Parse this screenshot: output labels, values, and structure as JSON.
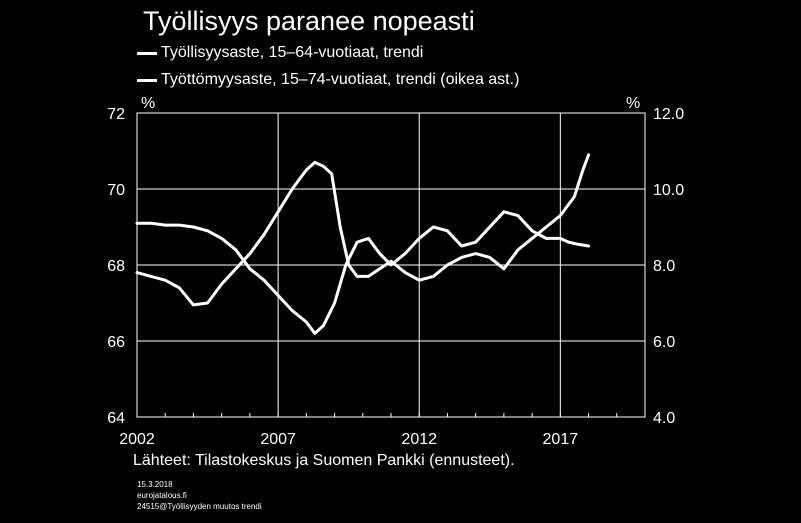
{
  "chart_data": {
    "type": "line",
    "title": "Työllisyys paranee nopeasti",
    "left_axis": {
      "unit": "%",
      "ylim": [
        64,
        72
      ],
      "ticks": [
        "64",
        "66",
        "68",
        "70",
        "72"
      ]
    },
    "right_axis": {
      "unit": "%",
      "ylim": [
        4.0,
        12.0
      ],
      "ticks": [
        "4.0",
        "6.0",
        "8.0",
        "10.0",
        "12.0"
      ]
    },
    "x_axis": {
      "range": [
        2002.0,
        2020.0
      ],
      "tick_labels": [
        "2002",
        "2007",
        "2012",
        "2017"
      ],
      "gridlines": [
        2007,
        2012,
        2017
      ]
    },
    "grid": true,
    "legend_position": "top-left",
    "series": [
      {
        "name": "Työllisyysaste, 15–64-vuotiaat, trendi",
        "axis": "left",
        "color": "#ffffff",
        "points": [
          [
            2002.0,
            67.8
          ],
          [
            2002.5,
            67.7
          ],
          [
            2003.0,
            67.6
          ],
          [
            2003.5,
            67.4
          ],
          [
            2004.0,
            66.95
          ],
          [
            2004.5,
            67.0
          ],
          [
            2005.0,
            67.5
          ],
          [
            2005.5,
            67.9
          ],
          [
            2006.0,
            68.3
          ],
          [
            2006.5,
            68.8
          ],
          [
            2007.0,
            69.4
          ],
          [
            2007.5,
            70.0
          ],
          [
            2008.0,
            70.5
          ],
          [
            2008.3,
            70.7
          ],
          [
            2008.6,
            70.6
          ],
          [
            2008.9,
            70.4
          ],
          [
            2009.2,
            69.0
          ],
          [
            2009.5,
            68.0
          ],
          [
            2009.8,
            67.7
          ],
          [
            2010.2,
            67.7
          ],
          [
            2010.6,
            67.9
          ],
          [
            2011.0,
            68.1
          ],
          [
            2011.5,
            67.8
          ],
          [
            2012.0,
            67.6
          ],
          [
            2012.5,
            67.7
          ],
          [
            2013.0,
            68.0
          ],
          [
            2013.5,
            68.2
          ],
          [
            2014.0,
            68.3
          ],
          [
            2014.5,
            68.2
          ],
          [
            2015.0,
            67.9
          ],
          [
            2015.5,
            68.4
          ],
          [
            2016.0,
            68.7
          ],
          [
            2016.5,
            69.0
          ],
          [
            2017.0,
            69.3
          ],
          [
            2017.5,
            69.8
          ],
          [
            2017.8,
            70.5
          ],
          [
            2018.0,
            70.9
          ]
        ]
      },
      {
        "name": "Työttömyysaste, 15–74-vuotiaat, trendi (oikea ast.)",
        "axis": "right",
        "color": "#ffffff",
        "points": [
          [
            2002.0,
            9.1
          ],
          [
            2002.5,
            9.1
          ],
          [
            2003.0,
            9.05
          ],
          [
            2003.5,
            9.05
          ],
          [
            2004.0,
            9.0
          ],
          [
            2004.5,
            8.9
          ],
          [
            2005.0,
            8.7
          ],
          [
            2005.5,
            8.4
          ],
          [
            2006.0,
            7.9
          ],
          [
            2006.5,
            7.6
          ],
          [
            2007.0,
            7.2
          ],
          [
            2007.5,
            6.8
          ],
          [
            2008.0,
            6.5
          ],
          [
            2008.3,
            6.2
          ],
          [
            2008.6,
            6.4
          ],
          [
            2009.0,
            7.0
          ],
          [
            2009.4,
            8.0
          ],
          [
            2009.8,
            8.6
          ],
          [
            2010.2,
            8.7
          ],
          [
            2010.6,
            8.3
          ],
          [
            2011.0,
            8.0
          ],
          [
            2011.5,
            8.3
          ],
          [
            2012.0,
            8.7
          ],
          [
            2012.5,
            9.0
          ],
          [
            2013.0,
            8.9
          ],
          [
            2013.5,
            8.5
          ],
          [
            2014.0,
            8.6
          ],
          [
            2014.5,
            9.0
          ],
          [
            2015.0,
            9.4
          ],
          [
            2015.5,
            9.3
          ],
          [
            2016.0,
            8.9
          ],
          [
            2016.5,
            8.7
          ],
          [
            2017.0,
            8.7
          ],
          [
            2017.3,
            8.6
          ],
          [
            2017.6,
            8.55
          ],
          [
            2018.0,
            8.5
          ]
        ]
      }
    ]
  },
  "source": "Lähteet:  Tilastokeskus ja Suomen Pankki (ennusteet).",
  "footer": {
    "date": "15.3.2018",
    "site": "eurojatalous.fi",
    "file": "24515@Työllisyyden  muutos trendi"
  }
}
